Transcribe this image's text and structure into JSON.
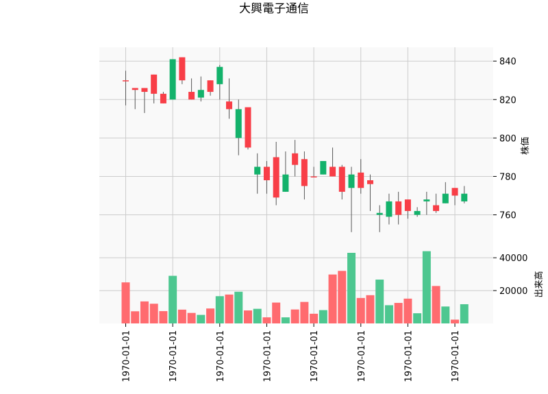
{
  "chart_data": {
    "type": "candlestick",
    "title": "大興電子通信",
    "price_ylabel": "株価",
    "volume_ylabel": "出来高",
    "price_yticks": [
      "760",
      "780",
      "800",
      "820",
      "840"
    ],
    "volume_yticks": [
      "20000",
      "40000"
    ],
    "xtick_labels": [
      "1970-01-01",
      "1970-01-01",
      "1970-01-01",
      "1970-01-01",
      "1970-01-01",
      "1970-01-01",
      "1970-01-01",
      "1970-01-01"
    ],
    "xtick_index": [
      0,
      5,
      10,
      15,
      20,
      25,
      30,
      35
    ],
    "price_ylim": [
      744.5,
      847.2
    ],
    "volume_ylim": [
      0,
      48000
    ],
    "colors": {
      "up": "#13b26b",
      "down": "#f83e47",
      "up_volume": "#4dc790",
      "down_volume": "#ff6b6f",
      "wick": "#555555",
      "grid": "#cccccc",
      "panel_bg": "#f9f9f9"
    },
    "candles": [
      {
        "open": 830,
        "high": 835,
        "low": 817,
        "close": 830,
        "volume": 25000
      },
      {
        "open": 826,
        "high": 826,
        "low": 815,
        "close": 825,
        "volume": 7400
      },
      {
        "open": 826,
        "high": 826,
        "low": 813,
        "close": 824,
        "volume": 13400
      },
      {
        "open": 833,
        "high": 833,
        "low": 818,
        "close": 823,
        "volume": 12000
      },
      {
        "open": 823,
        "high": 824,
        "low": 818,
        "close": 818,
        "volume": 7500
      },
      {
        "open": 820,
        "high": 841,
        "low": 820,
        "close": 841,
        "volume": 29000
      },
      {
        "open": 842,
        "high": 842,
        "low": 828,
        "close": 830,
        "volume": 8400
      },
      {
        "open": 824,
        "high": 831,
        "low": 820,
        "close": 820,
        "volume": 6400
      },
      {
        "open": 821,
        "high": 832,
        "low": 819,
        "close": 825,
        "volume": 5200
      },
      {
        "open": 830,
        "high": 830,
        "low": 822,
        "close": 824,
        "volume": 9100
      },
      {
        "open": 828,
        "high": 838,
        "low": 820,
        "close": 837,
        "volume": 16600
      },
      {
        "open": 819,
        "high": 831,
        "low": 810,
        "close": 815,
        "volume": 17600
      },
      {
        "open": 800,
        "high": 820,
        "low": 791,
        "close": 815,
        "volume": 19300
      },
      {
        "open": 816,
        "high": 816,
        "low": 794,
        "close": 795,
        "volume": 7900
      },
      {
        "open": 781,
        "high": 792,
        "low": 771,
        "close": 785,
        "volume": 8900
      },
      {
        "open": 785,
        "high": 788,
        "low": 771,
        "close": 778,
        "volume": 3700
      },
      {
        "open": 790,
        "high": 798,
        "low": 765,
        "close": 769,
        "volume": 12700
      },
      {
        "open": 772,
        "high": 793,
        "low": 772,
        "close": 781,
        "volume": 3700
      },
      {
        "open": 792,
        "high": 799,
        "low": 780,
        "close": 786,
        "volume": 8500
      },
      {
        "open": 789,
        "high": 793,
        "low": 768,
        "close": 775,
        "volume": 13100
      },
      {
        "open": 780,
        "high": 785,
        "low": 780,
        "close": 780,
        "volume": 5900
      },
      {
        "open": 781,
        "high": 788,
        "low": 781,
        "close": 788,
        "volume": 8100
      },
      {
        "open": 785,
        "high": 795,
        "low": 780,
        "close": 780,
        "volume": 29800
      },
      {
        "open": 785,
        "high": 786,
        "low": 768,
        "close": 772,
        "volume": 32000
      },
      {
        "open": 774,
        "high": 785,
        "low": 751,
        "close": 781,
        "volume": 43000
      },
      {
        "open": 782,
        "high": 789,
        "low": 771,
        "close": 774,
        "volume": 15500
      },
      {
        "open": 778,
        "high": 781,
        "low": 762,
        "close": 776,
        "volume": 17200
      },
      {
        "open": 760,
        "high": 765,
        "low": 751,
        "close": 761,
        "volume": 26700
      },
      {
        "open": 759,
        "high": 771,
        "low": 755,
        "close": 767,
        "volume": 11100
      },
      {
        "open": 767,
        "high": 772,
        "low": 755,
        "close": 760,
        "volume": 12500
      },
      {
        "open": 768,
        "high": 768,
        "low": 758,
        "close": 762,
        "volume": 15100
      },
      {
        "open": 760,
        "high": 764,
        "low": 759,
        "close": 762,
        "volume": 6200
      },
      {
        "open": 767,
        "high": 772,
        "low": 760,
        "close": 768,
        "volume": 44000
      },
      {
        "open": 765,
        "high": 771,
        "low": 761,
        "close": 762,
        "volume": 22800
      },
      {
        "open": 766,
        "high": 777,
        "low": 766,
        "close": 771,
        "volume": 10300
      },
      {
        "open": 774,
        "high": 774,
        "low": 765,
        "close": 770,
        "volume": 2300
      },
      {
        "open": 767,
        "high": 775,
        "low": 766,
        "close": 771,
        "volume": 11700
      }
    ]
  }
}
